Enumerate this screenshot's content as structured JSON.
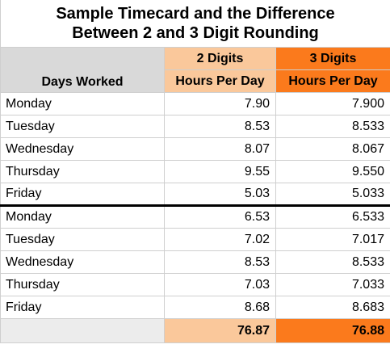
{
  "title_line1": "Sample Timecard and the Difference",
  "title_line2": "Between 2 and 3 Digit Rounding",
  "headers": {
    "days": "Days Worked",
    "two_digits": "2 Digits",
    "three_digits": "3 Digits",
    "hours": "Hours Per Day"
  },
  "colors": {
    "light_orange": "#fac89b",
    "orange": "#fb7a1c",
    "gray": "#d9d9d9"
  },
  "rows": [
    {
      "day": "Monday",
      "d2": "7.90",
      "d3": "7.900"
    },
    {
      "day": "Tuesday",
      "d2": "8.53",
      "d3": "8.533"
    },
    {
      "day": "Wednesday",
      "d2": "8.07",
      "d3": "8.067"
    },
    {
      "day": "Thursday",
      "d2": "9.55",
      "d3": "9.550"
    },
    {
      "day": "Friday",
      "d2": "5.03",
      "d3": "5.033"
    },
    {
      "day": "Monday",
      "d2": "6.53",
      "d3": "6.533"
    },
    {
      "day": "Tuesday",
      "d2": "7.02",
      "d3": "7.017"
    },
    {
      "day": "Wednesday",
      "d2": "8.53",
      "d3": "8.533"
    },
    {
      "day": "Thursday",
      "d2": "7.03",
      "d3": "7.033"
    },
    {
      "day": "Friday",
      "d2": "8.68",
      "d3": "8.683"
    }
  ],
  "totals": {
    "d2": "76.87",
    "d3": "76.88"
  }
}
